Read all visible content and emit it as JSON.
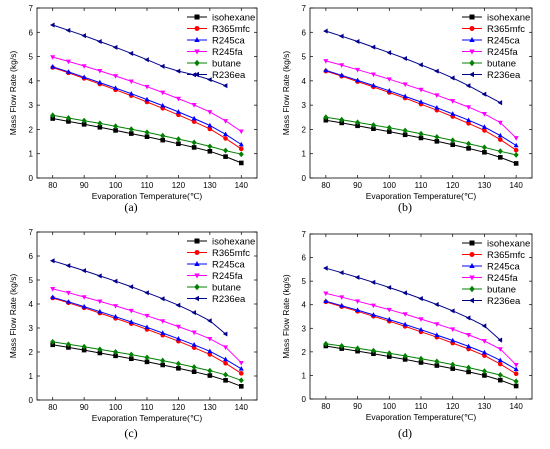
{
  "chart_data": [
    {
      "panel_label": "(a)",
      "type": "line",
      "xlabel": "Evaporation Temperature(℃)",
      "ylabel": "Mass Flow Rate (kg/s)",
      "xlim": [
        75,
        145
      ],
      "ylim": [
        0,
        7
      ],
      "xticks": [
        80,
        90,
        100,
        110,
        120,
        130,
        140
      ],
      "yticks": [
        0,
        1,
        2,
        3,
        4,
        5,
        6,
        7
      ],
      "legend_position": "top-right",
      "series": [
        {
          "name": "isohexane",
          "color": "#000000",
          "marker": "square",
          "x": [
            80,
            85,
            90,
            95,
            100,
            105,
            110,
            115,
            120,
            125,
            130,
            135,
            140
          ],
          "values": [
            2.45,
            2.33,
            2.21,
            2.09,
            1.96,
            1.83,
            1.7,
            1.56,
            1.41,
            1.26,
            1.1,
            0.88,
            0.62
          ]
        },
        {
          "name": "R365mfc",
          "color": "#ff0000",
          "marker": "circle",
          "x": [
            80,
            85,
            90,
            95,
            100,
            105,
            110,
            115,
            120,
            125,
            130,
            135,
            140
          ],
          "values": [
            4.55,
            4.33,
            4.1,
            3.87,
            3.63,
            3.39,
            3.13,
            2.87,
            2.6,
            2.32,
            2.02,
            1.63,
            1.2
          ]
        },
        {
          "name": "R245ca",
          "color": "#0000ff",
          "marker": "triangle-up",
          "x": [
            80,
            85,
            90,
            95,
            100,
            105,
            110,
            115,
            120,
            125,
            130,
            135,
            140
          ],
          "values": [
            4.58,
            4.37,
            4.15,
            3.93,
            3.7,
            3.47,
            3.23,
            2.98,
            2.72,
            2.45,
            2.16,
            1.8,
            1.38
          ]
        },
        {
          "name": "R245fa",
          "color": "#ff00ff",
          "marker": "triangle-down",
          "x": [
            80,
            85,
            90,
            95,
            100,
            105,
            110,
            115,
            120,
            125,
            130,
            135,
            140
          ],
          "values": [
            4.98,
            4.8,
            4.61,
            4.41,
            4.2,
            3.98,
            3.76,
            3.52,
            3.27,
            3.01,
            2.72,
            2.35,
            1.92
          ]
        },
        {
          "name": "butane",
          "color": "#008000",
          "marker": "diamond",
          "x": [
            80,
            85,
            90,
            95,
            100,
            105,
            110,
            115,
            120,
            125,
            130,
            135,
            140
          ],
          "values": [
            2.58,
            2.47,
            2.36,
            2.25,
            2.13,
            2.01,
            1.88,
            1.74,
            1.6,
            1.46,
            1.3,
            1.13,
            0.98
          ]
        },
        {
          "name": "R236ea",
          "color": "#00008b",
          "marker": "triangle-left",
          "x": [
            80,
            85,
            90,
            95,
            100,
            105,
            110,
            115,
            120,
            125,
            130,
            135
          ],
          "values": [
            6.3,
            6.08,
            5.86,
            5.62,
            5.38,
            5.13,
            4.87,
            4.6,
            4.4,
            4.25,
            4.05,
            3.8
          ]
        }
      ]
    },
    {
      "panel_label": "(b)",
      "type": "line",
      "xlabel": "Evaporation Temperature(℃)",
      "ylabel": "Mass Flow Rate (kg/s)",
      "xlim": [
        75,
        145
      ],
      "ylim": [
        0,
        7
      ],
      "xticks": [
        80,
        90,
        100,
        110,
        120,
        130,
        140
      ],
      "yticks": [
        0,
        1,
        2,
        3,
        4,
        5,
        6,
        7
      ],
      "legend_position": "top-right",
      "series": [
        {
          "name": "isohexane",
          "color": "#000000",
          "marker": "square",
          "x": [
            80,
            85,
            90,
            95,
            100,
            105,
            110,
            115,
            120,
            125,
            130,
            135,
            140
          ],
          "values": [
            2.38,
            2.27,
            2.15,
            2.03,
            1.91,
            1.78,
            1.65,
            1.51,
            1.37,
            1.22,
            1.06,
            0.85,
            0.6
          ]
        },
        {
          "name": "R365mfc",
          "color": "#ff0000",
          "marker": "circle",
          "x": [
            80,
            85,
            90,
            95,
            100,
            105,
            110,
            115,
            120,
            125,
            130,
            135,
            140
          ],
          "values": [
            4.4,
            4.19,
            3.97,
            3.75,
            3.52,
            3.29,
            3.04,
            2.79,
            2.53,
            2.25,
            1.96,
            1.58,
            1.15
          ]
        },
        {
          "name": "R245ca",
          "color": "#0000ff",
          "marker": "triangle-up",
          "x": [
            80,
            85,
            90,
            95,
            100,
            105,
            110,
            115,
            120,
            125,
            130,
            135,
            140
          ],
          "values": [
            4.43,
            4.23,
            4.02,
            3.81,
            3.59,
            3.36,
            3.13,
            2.89,
            2.64,
            2.38,
            2.1,
            1.75,
            1.34
          ]
        },
        {
          "name": "R245fa",
          "color": "#ff00ff",
          "marker": "triangle-down",
          "x": [
            80,
            85,
            90,
            95,
            100,
            105,
            110,
            115,
            120,
            125,
            130,
            135,
            140
          ],
          "values": [
            4.82,
            4.65,
            4.46,
            4.27,
            4.07,
            3.86,
            3.64,
            3.41,
            3.17,
            2.92,
            2.64,
            2.28,
            1.65
          ]
        },
        {
          "name": "butane",
          "color": "#008000",
          "marker": "diamond",
          "x": [
            80,
            85,
            90,
            95,
            100,
            105,
            110,
            115,
            120,
            125,
            130,
            135,
            140
          ],
          "values": [
            2.5,
            2.4,
            2.29,
            2.18,
            2.07,
            1.95,
            1.82,
            1.69,
            1.55,
            1.41,
            1.26,
            1.1,
            0.95
          ]
        },
        {
          "name": "R236ea",
          "color": "#00008b",
          "marker": "triangle-left",
          "x": [
            80,
            85,
            90,
            95,
            100,
            105,
            110,
            115,
            120,
            125,
            130,
            135
          ],
          "values": [
            6.05,
            5.84,
            5.62,
            5.39,
            5.16,
            4.92,
            4.66,
            4.4,
            4.12,
            3.8,
            3.45,
            3.1
          ]
        }
      ]
    },
    {
      "panel_label": "(c)",
      "type": "line",
      "xlabel": "Evaporation Temperature(℃)",
      "ylabel": "Mass Flow Rate (kg/s)",
      "xlim": [
        75,
        145
      ],
      "ylim": [
        0,
        7
      ],
      "xticks": [
        80,
        90,
        100,
        110,
        120,
        130,
        140
      ],
      "yticks": [
        0,
        1,
        2,
        3,
        4,
        5,
        6,
        7
      ],
      "legend_position": "top-right",
      "series": [
        {
          "name": "isohexane",
          "color": "#000000",
          "marker": "square",
          "x": [
            80,
            85,
            90,
            95,
            100,
            105,
            110,
            115,
            120,
            125,
            130,
            135,
            140
          ],
          "values": [
            2.3,
            2.19,
            2.08,
            1.96,
            1.84,
            1.72,
            1.59,
            1.46,
            1.32,
            1.18,
            1.02,
            0.82,
            0.57
          ]
        },
        {
          "name": "R365mfc",
          "color": "#ff0000",
          "marker": "circle",
          "x": [
            80,
            85,
            90,
            95,
            100,
            105,
            110,
            115,
            120,
            125,
            130,
            135,
            140
          ],
          "values": [
            4.25,
            4.05,
            3.84,
            3.62,
            3.4,
            3.18,
            2.94,
            2.7,
            2.45,
            2.18,
            1.9,
            1.53,
            1.11
          ]
        },
        {
          "name": "R245ca",
          "color": "#0000ff",
          "marker": "triangle-up",
          "x": [
            80,
            85,
            90,
            95,
            100,
            105,
            110,
            115,
            120,
            125,
            130,
            135,
            140
          ],
          "values": [
            4.28,
            4.09,
            3.89,
            3.68,
            3.47,
            3.25,
            3.03,
            2.79,
            2.55,
            2.3,
            2.03,
            1.69,
            1.3
          ]
        },
        {
          "name": "R245fa",
          "color": "#ff00ff",
          "marker": "triangle-down",
          "x": [
            80,
            85,
            90,
            95,
            100,
            105,
            110,
            115,
            120,
            125,
            130,
            135,
            140
          ],
          "values": [
            4.63,
            4.47,
            4.29,
            4.11,
            3.92,
            3.72,
            3.51,
            3.29,
            3.06,
            2.82,
            2.55,
            2.2,
            1.55
          ]
        },
        {
          "name": "butane",
          "color": "#008000",
          "marker": "diamond",
          "x": [
            80,
            85,
            90,
            95,
            100,
            105,
            110,
            115,
            120,
            125,
            130,
            135,
            140
          ],
          "values": [
            2.42,
            2.32,
            2.22,
            2.11,
            2.0,
            1.89,
            1.77,
            1.64,
            1.51,
            1.37,
            1.22,
            1.05,
            0.82
          ]
        },
        {
          "name": "R236ea",
          "color": "#00008b",
          "marker": "triangle-left",
          "x": [
            80,
            85,
            90,
            95,
            100,
            105,
            110,
            115,
            120,
            125,
            130,
            135
          ],
          "values": [
            5.8,
            5.6,
            5.39,
            5.17,
            4.95,
            4.72,
            4.47,
            4.22,
            3.95,
            3.64,
            3.3,
            2.75
          ]
        }
      ]
    },
    {
      "panel_label": "(d)",
      "type": "line",
      "xlabel": "Evaporation Temperature(℃)",
      "ylabel": "Mass Flow Rate (kg/s)",
      "xlim": [
        75,
        145
      ],
      "ylim": [
        0,
        7
      ],
      "xticks": [
        80,
        90,
        100,
        110,
        120,
        130,
        140
      ],
      "yticks": [
        0,
        1,
        2,
        3,
        4,
        5,
        6,
        7
      ],
      "legend_position": "top-right",
      "series": [
        {
          "name": "isohexane",
          "color": "#000000",
          "marker": "square",
          "x": [
            80,
            85,
            90,
            95,
            100,
            105,
            110,
            115,
            120,
            125,
            130,
            135,
            140
          ],
          "values": [
            2.25,
            2.14,
            2.03,
            1.92,
            1.8,
            1.68,
            1.55,
            1.42,
            1.29,
            1.15,
            1.0,
            0.8,
            0.55
          ]
        },
        {
          "name": "R365mfc",
          "color": "#ff0000",
          "marker": "circle",
          "x": [
            80,
            85,
            90,
            95,
            100,
            105,
            110,
            115,
            120,
            125,
            130,
            135,
            140
          ],
          "values": [
            4.12,
            3.92,
            3.72,
            3.51,
            3.3,
            3.08,
            2.85,
            2.62,
            2.37,
            2.12,
            1.84,
            1.48,
            1.07
          ]
        },
        {
          "name": "R245ca",
          "color": "#0000ff",
          "marker": "triangle-up",
          "x": [
            80,
            85,
            90,
            95,
            100,
            105,
            110,
            115,
            120,
            125,
            130,
            135,
            140
          ],
          "values": [
            4.15,
            3.96,
            3.77,
            3.57,
            3.37,
            3.16,
            2.94,
            2.71,
            2.48,
            2.23,
            1.97,
            1.64,
            1.26
          ]
        },
        {
          "name": "R245fa",
          "color": "#ff00ff",
          "marker": "triangle-down",
          "x": [
            80,
            85,
            90,
            95,
            100,
            105,
            110,
            115,
            120,
            125,
            130,
            135,
            140
          ],
          "values": [
            4.48,
            4.32,
            4.15,
            3.97,
            3.79,
            3.6,
            3.39,
            3.18,
            2.96,
            2.72,
            2.46,
            2.12,
            1.45
          ]
        },
        {
          "name": "butane",
          "color": "#008000",
          "marker": "diamond",
          "x": [
            80,
            85,
            90,
            95,
            100,
            105,
            110,
            115,
            120,
            125,
            130,
            135,
            140
          ],
          "values": [
            2.34,
            2.25,
            2.15,
            2.05,
            1.94,
            1.83,
            1.71,
            1.59,
            1.46,
            1.33,
            1.18,
            1.02,
            0.75
          ]
        },
        {
          "name": "R236ea",
          "color": "#00008b",
          "marker": "triangle-left",
          "x": [
            80,
            85,
            90,
            95,
            100,
            105,
            110,
            115,
            120,
            125,
            130,
            135
          ],
          "values": [
            5.55,
            5.36,
            5.16,
            4.95,
            4.73,
            4.5,
            4.26,
            4.01,
            3.74,
            3.44,
            3.1,
            2.5
          ]
        }
      ]
    }
  ]
}
